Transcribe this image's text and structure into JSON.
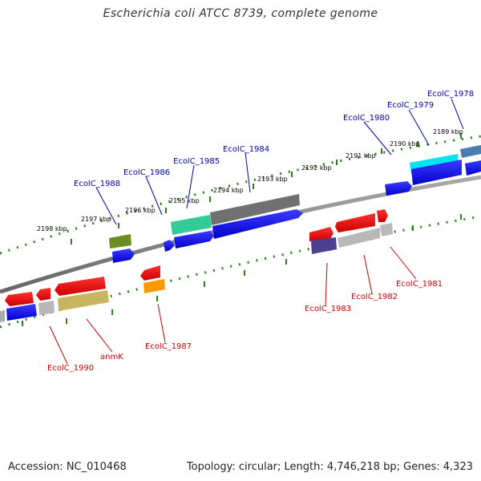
{
  "title": "Escherichia coli ATCC 8739, complete genome",
  "footer": {
    "accession": "Accession: NC_010468",
    "topology": "Topology: circular; Length: 4,746,218 bp; Genes: 4,323"
  },
  "ticks": [
    "2189 kbp",
    "2190 kbp",
    "2191 kbp",
    "2192 kbp",
    "2193 kbp",
    "2194 kbp",
    "2195 kbp",
    "2196 kbp",
    "2197 kbp",
    "2198 kbp"
  ],
  "genes_top": [
    "EcolC_1978",
    "EcolC_1979",
    "EcolC_1980",
    "EcolC_1984",
    "EcolC_1985",
    "EcolC_1986",
    "EcolC_1988"
  ],
  "genes_bottom": [
    "EcolC_1981",
    "EcolC_1982",
    "EcolC_1983",
    "EcolC_1987",
    "anmK",
    "EcolC_1990"
  ],
  "colors": {
    "forward_label": "#0000b0",
    "reverse_label": "#cc0000",
    "cds_forward": "#0000ee",
    "cds_reverse": "#ee0000",
    "backbone": "#808080",
    "tick": "#2e7d1e",
    "cyan": "#00e5ee",
    "teal": "#33cc99",
    "olive": "#6b8e23",
    "khaki": "#c8b560",
    "orange": "#ff9900",
    "purple": "#4b3f8f",
    "slate": "#4a7db0",
    "silver": "#b8b8b8",
    "darkgray": "#707070"
  }
}
